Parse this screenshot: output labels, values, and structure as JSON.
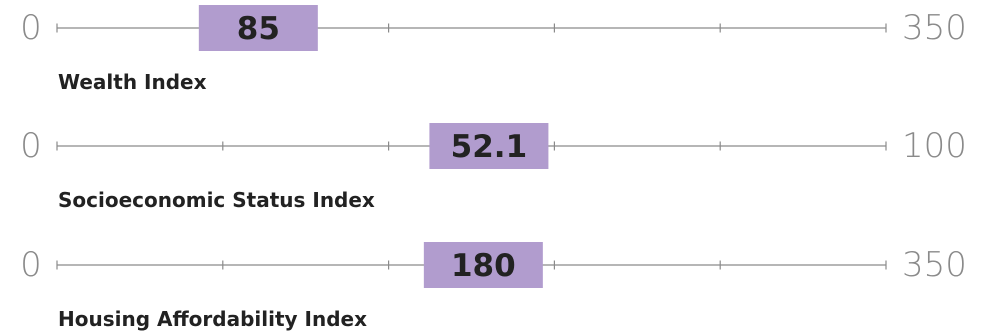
{
  "chart_data": [
    {
      "type": "bullet",
      "label": "Wealth Index",
      "min": 0,
      "max": 350,
      "min_label": "0",
      "max_label": "350",
      "value": 85,
      "value_label": "85",
      "ticks": 6
    },
    {
      "type": "bullet",
      "label": "Socioeconomic Status Index",
      "min": 0,
      "max": 100,
      "min_label": "0",
      "max_label": "100",
      "value": 52.1,
      "value_label": "52.1",
      "ticks": 6
    },
    {
      "type": "bullet",
      "label": "Housing Affordability Index",
      "min": 0,
      "max": 350,
      "min_label": "0",
      "max_label": "350",
      "value": 180,
      "value_label": "180",
      "ticks": 6
    }
  ],
  "colors": {
    "marker_fill": "#b19cce",
    "axis_line": "#8a8a8a",
    "end_label": "#8a8a8a",
    "text": "#222222"
  }
}
